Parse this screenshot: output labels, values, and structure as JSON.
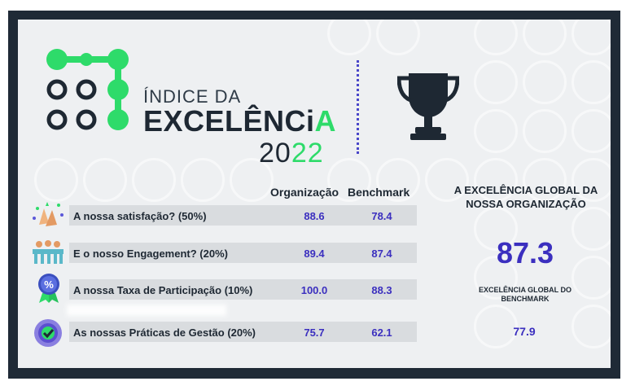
{
  "header": {
    "indice": "ÍNDICE DA",
    "excelencia_main": "EXCELÊNCi",
    "excelencia_accent": "A",
    "year_main": "20",
    "year_accent": "22"
  },
  "table": {
    "col_org": "Organização",
    "col_bench": "Benchmark",
    "rows": [
      {
        "label": "A nossa satisfação? (50%)",
        "org": "88.6",
        "bench": "78.4",
        "icon": "clapping-hands-icon"
      },
      {
        "label": "E o nosso Engagement? (20%)",
        "org": "89.4",
        "bench": "87.4",
        "icon": "team-icon"
      },
      {
        "label": "A nossa Taxa de Participação (10%)",
        "org": "100.0",
        "bench": "88.3",
        "icon": "percent-badge-icon"
      },
      {
        "label": "As nossas Práticas de Gestão (20%)",
        "org": "75.7",
        "bench": "62.1",
        "icon": "check-gear-icon"
      }
    ]
  },
  "summary": {
    "title": "A EXCELÊNCIA GLOBAL DA NOSSA ORGANIZAÇÃO",
    "org_value": "87.3",
    "bench_title": "EXCELÊNCIA GLOBAL DO BENCHMARK",
    "bench_value": "77.9"
  },
  "colors": {
    "accent_green": "#2edb6a",
    "value_blue": "#3b2fbf",
    "dark": "#1e2833",
    "frame": "#1f2a36"
  }
}
